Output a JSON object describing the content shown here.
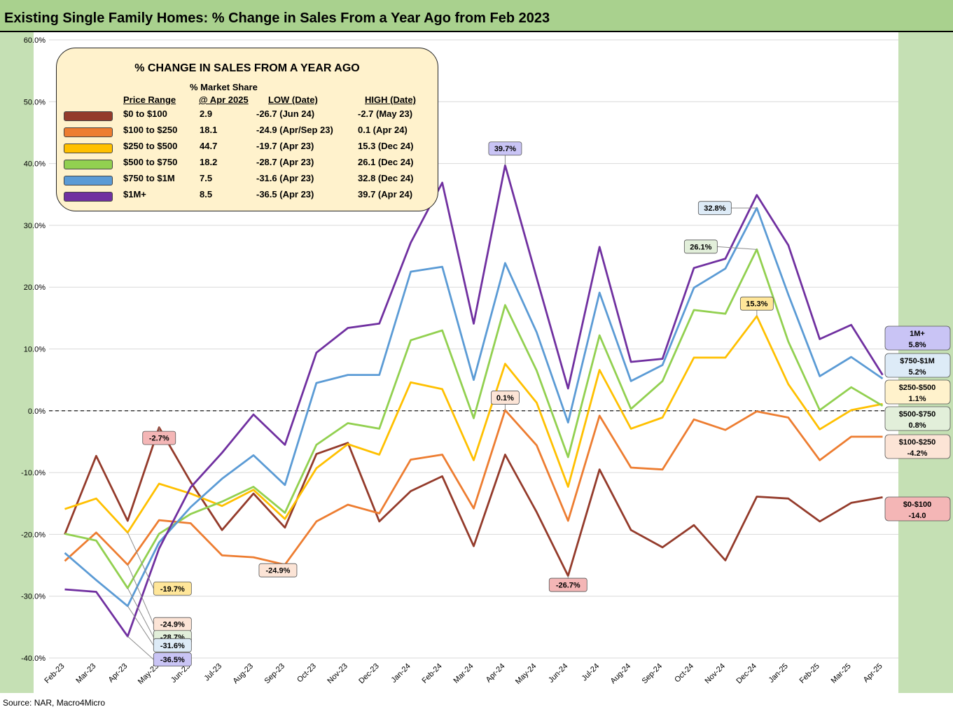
{
  "title": "Existing Single Family Homes: % Change in Sales From a Year Ago from Feb 2023",
  "source": "Source: NAR, Macro4Micro",
  "chart_data": {
    "type": "line",
    "categories": [
      "Feb-23",
      "Mar-23",
      "Apr-23",
      "May-23",
      "Jun-23",
      "Jul-23",
      "Aug-23",
      "Sep-23",
      "Oct-23",
      "Nov-23",
      "Dec-23",
      "Jan-24",
      "Feb-24",
      "Mar-24",
      "Apr-24",
      "May-24",
      "Jun-24",
      "Jul-24",
      "Aug-24",
      "Sep-24",
      "Oct-24",
      "Nov-24",
      "Dec-24",
      "Jan-25",
      "Feb-25",
      "Mar-25",
      "Apr-25"
    ],
    "ylim": [
      -40,
      60
    ],
    "yticks": [
      "60.0%",
      "50.0%",
      "40.0%",
      "30.0%",
      "20.0%",
      "10.0%",
      "0.0%",
      "-10.0%",
      "-20.0%",
      "-30.0%",
      "-40.0%"
    ],
    "series": [
      {
        "name": "$0 to $100",
        "color": "#943b2b",
        "values": [
          -20.0,
          -7.3,
          -17.8,
          -2.7,
          -11.5,
          -19.3,
          -13.4,
          -18.9,
          -7.0,
          -5.2,
          -17.9,
          -13.0,
          -10.6,
          -21.9,
          -7.1,
          -16.4,
          -26.7,
          -9.5,
          -19.3,
          -22.1,
          -18.5,
          -24.2,
          -13.9,
          -14.2,
          -17.9,
          -14.9,
          -14.0
        ]
      },
      {
        "name": "$100 to $250",
        "color": "#ed7d31",
        "values": [
          -24.3,
          -19.7,
          -24.9,
          -17.7,
          -18.2,
          -23.4,
          -23.7,
          -24.9,
          -17.9,
          -15.2,
          -16.6,
          -7.9,
          -7.1,
          -15.8,
          0.1,
          -5.6,
          -17.8,
          -0.8,
          -9.2,
          -9.5,
          -1.4,
          -3.1,
          -0.1,
          -1.1,
          -8.0,
          -4.2,
          -4.2
        ]
      },
      {
        "name": "$250 to $500",
        "color": "#ffc000",
        "values": [
          -15.9,
          -14.2,
          -19.7,
          -11.8,
          -13.4,
          -15.4,
          -12.8,
          -17.5,
          -9.3,
          -5.4,
          -7.1,
          4.6,
          3.5,
          -8.0,
          7.6,
          1.3,
          -12.3,
          6.6,
          -2.9,
          -1.1,
          8.6,
          8.6,
          15.3,
          4.3,
          -3.0,
          0.1,
          1.1
        ]
      },
      {
        "name": "$500 to $750",
        "color": "#92d050",
        "values": [
          -19.9,
          -21.0,
          -28.7,
          -19.9,
          -16.7,
          -14.7,
          -12.3,
          -16.5,
          -5.5,
          -2.0,
          -2.9,
          11.4,
          13.0,
          -1.2,
          17.1,
          6.5,
          -7.5,
          12.2,
          0.3,
          4.8,
          16.3,
          15.7,
          26.1,
          11.2,
          0.1,
          3.8,
          0.8
        ]
      },
      {
        "name": "$750 to $1M",
        "color": "#5b9bd5",
        "values": [
          -23.0,
          -27.4,
          -31.6,
          -21.3,
          -15.6,
          -11.0,
          -7.2,
          -12.0,
          4.5,
          5.8,
          5.8,
          22.5,
          23.3,
          5.0,
          23.9,
          12.7,
          -1.9,
          19.1,
          4.8,
          7.4,
          19.9,
          23.0,
          32.8,
          18.8,
          5.6,
          8.7,
          5.2
        ]
      },
      {
        "name": "$1M+",
        "color": "#7030a0",
        "values": [
          -28.9,
          -29.3,
          -36.5,
          -22.3,
          -12.4,
          -6.8,
          -0.6,
          -5.5,
          9.4,
          13.4,
          14.1,
          27.2,
          36.9,
          14.1,
          39.7,
          21.5,
          3.6,
          26.5,
          7.9,
          8.4,
          23.1,
          24.6,
          34.9,
          26.8,
          11.6,
          13.9,
          5.8
        ]
      }
    ],
    "legend": {
      "title": "% CHANGE IN SALES FROM A YEAR AGO",
      "header_top": "% Market Share",
      "headers": [
        "Price Range",
        "@ Apr 2025",
        "LOW  (Date)",
        "HIGH  (Date)"
      ],
      "rows": [
        {
          "range": "$0 to $100",
          "share": "2.9",
          "low": "-26.7  (Jun 24)",
          "high": "-2.7  (May 23)",
          "color": "#943b2b"
        },
        {
          "range": "$100  to $250",
          "share": "18.1",
          "low": "-24.9  (Apr/Sep 23)",
          "high": "0.1  (Apr 24)",
          "color": "#ed7d31"
        },
        {
          "range": "$250  to $500",
          "share": "44.7",
          "low": "-19.7  (Apr 23)",
          "high": "15.3  (Dec 24)",
          "color": "#ffc000"
        },
        {
          "range": "$500  to $750",
          "share": "18.2",
          "low": "-28.7  (Apr 23)",
          "high": "26.1  (Dec 24)",
          "color": "#92d050"
        },
        {
          "range": "$750  to $1M",
          "share": "7.5",
          "low": "-31.6  (Apr 23)",
          "high": "32.8  (Dec 24)",
          "color": "#5b9bd5"
        },
        {
          "range": "$1M+",
          "share": "8.5",
          "low": "-36.5  (Apr 23)",
          "high": "39.7  (Apr 24)",
          "color": "#7030a0"
        }
      ]
    },
    "annotations": [
      {
        "text": "-2.7%",
        "bg": "#f4b6b6",
        "x": "May-23",
        "y": -2.7
      },
      {
        "text": "-19.7%",
        "bg": "#ffe699",
        "x": "Apr-23",
        "y": -19.7
      },
      {
        "text": "-24.9%",
        "bg": "#fce4d6",
        "x": "Apr-23",
        "y": -24.9
      },
      {
        "text": "-24.9%",
        "bg": "#fce4d6",
        "x": "Sep-23",
        "y": -24.9
      },
      {
        "text": "-28.7%",
        "bg": "#e2efda",
        "x": "Apr-23",
        "y": -28.7
      },
      {
        "text": "-31.6%",
        "bg": "#ddebf7",
        "x": "Apr-23",
        "y": -31.6
      },
      {
        "text": "-36.5%",
        "bg": "#c9c4f5",
        "x": "Apr-23",
        "y": -36.5
      },
      {
        "text": "39.7%",
        "bg": "#c9c4f5",
        "x": "Apr-24",
        "y": 39.7
      },
      {
        "text": "0.1%",
        "bg": "#fce4d6",
        "x": "Apr-24",
        "y": 0.1
      },
      {
        "text": "-26.7%",
        "bg": "#f4b6b6",
        "x": "Jun-24",
        "y": -26.7
      },
      {
        "text": "32.8%",
        "bg": "#ddebf7",
        "x": "Dec-24",
        "y": 32.8
      },
      {
        "text": "26.1%",
        "bg": "#e2efda",
        "x": "Dec-24",
        "y": 26.1
      },
      {
        "text": "15.3%",
        "bg": "#ffe699",
        "x": "Dec-24",
        "y": 15.3
      }
    ],
    "end_labels": [
      {
        "line1": "1M+",
        "line2": "5.8%",
        "bg": "#c9c4f5"
      },
      {
        "line1": "$750-$1M",
        "line2": "5.2%",
        "bg": "#ddebf7"
      },
      {
        "line1": "$250-$500",
        "line2": "1.1%",
        "bg": "#fff2cc"
      },
      {
        "line1": "$500-$750",
        "line2": "0.8%",
        "bg": "#e2efda"
      },
      {
        "line1": "$100-$250",
        "line2": "-4.2%",
        "bg": "#fce4d6"
      },
      {
        "line1": "$0-$100",
        "line2": "-14.0",
        "bg": "#f4b6b6"
      }
    ]
  }
}
